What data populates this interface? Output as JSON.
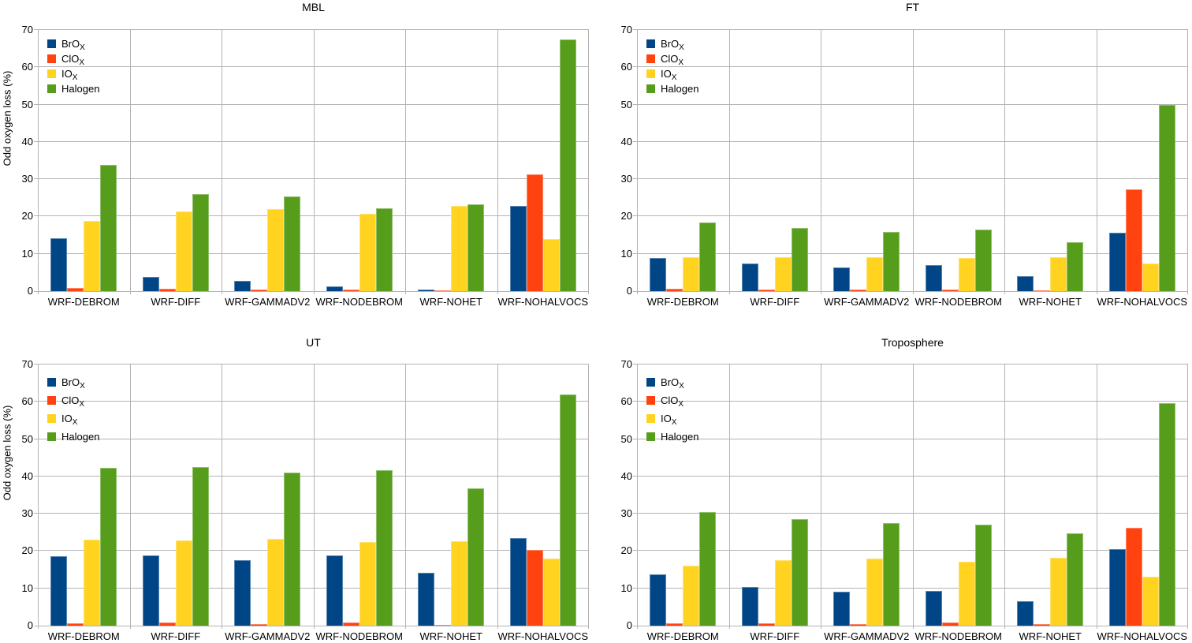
{
  "figure": {
    "background": "#ffffff",
    "grid_color": "#b3b3b3",
    "text_color": "#000000",
    "series_colors": {
      "BrOx": "#004586",
      "ClOx": "#FF420E",
      "IOx": "#FFD320",
      "Halogen": "#579D1C"
    },
    "legend": [
      {
        "series": "BrOx",
        "base": "BrO",
        "sub": "X"
      },
      {
        "series": "ClOx",
        "base": "ClO",
        "sub": "X"
      },
      {
        "series": "IOx",
        "base": "IO",
        "sub": "X"
      },
      {
        "series": "Halogen",
        "base": "Halogen",
        "sub": ""
      }
    ]
  },
  "chart_data": [
    {
      "type": "bar",
      "title": "MBL",
      "ylabel": "Odd oxygen loss (%)",
      "ylim": [
        0,
        70
      ],
      "yticks": [
        0,
        10,
        20,
        30,
        40,
        50,
        60,
        70
      ],
      "grid": true,
      "legend_position": "top-left-inside",
      "categories": [
        "WRF-DEBROM",
        "WRF-DIFF",
        "WRF-GAMMADV2",
        "WRF-NODEBROM",
        "WRF-NOHET",
        "WRF-NOHALVOCS"
      ],
      "series": [
        {
          "name": "BrOx",
          "values": [
            14.2,
            3.8,
            2.8,
            1.3,
            0.4,
            22.8
          ]
        },
        {
          "name": "ClOx",
          "values": [
            0.9,
            0.6,
            0.5,
            0.4,
            0.2,
            31.2
          ]
        },
        {
          "name": "IOx",
          "values": [
            18.9,
            21.4,
            22.0,
            20.8,
            22.9,
            13.9
          ]
        },
        {
          "name": "Halogen",
          "values": [
            33.8,
            26.0,
            25.3,
            22.3,
            23.3,
            67.5
          ]
        }
      ]
    },
    {
      "type": "bar",
      "title": "FT",
      "ylabel": "",
      "ylim": [
        0,
        70
      ],
      "yticks": [
        0,
        10,
        20,
        30,
        40,
        50,
        60,
        70
      ],
      "grid": true,
      "legend_position": "top-left-inside",
      "categories": [
        "WRF-DEBROM",
        "WRF-DIFF",
        "WRF-GAMMADV2",
        "WRF-NODEBROM",
        "WRF-NOHET",
        "WRF-NOHALVOCS"
      ],
      "series": [
        {
          "name": "BrOx",
          "values": [
            8.8,
            7.4,
            6.4,
            7.0,
            4.1,
            15.7
          ]
        },
        {
          "name": "ClOx",
          "values": [
            0.6,
            0.5,
            0.4,
            0.5,
            0.3,
            27.2
          ]
        },
        {
          "name": "IOx",
          "values": [
            9.1,
            9.1,
            9.2,
            8.8,
            9.0,
            7.5
          ]
        },
        {
          "name": "Halogen",
          "values": [
            18.4,
            17.0,
            15.9,
            16.4,
            13.2,
            50.0
          ]
        }
      ]
    },
    {
      "type": "bar",
      "title": "UT",
      "ylabel": "Odd oxygen loss (%)",
      "ylim": [
        0,
        70
      ],
      "yticks": [
        0,
        10,
        20,
        30,
        40,
        50,
        60,
        70
      ],
      "grid": true,
      "legend_position": "top-left-inside",
      "categories": [
        "WRF-DEBROM",
        "WRF-DIFF",
        "WRF-GAMMADV2",
        "WRF-NODEBROM",
        "WRF-NOHET",
        "WRF-NOHALVOCS"
      ],
      "series": [
        {
          "name": "BrOx",
          "values": [
            18.7,
            18.8,
            17.5,
            18.8,
            14.1,
            23.5
          ]
        },
        {
          "name": "ClOx",
          "values": [
            0.7,
            0.9,
            0.5,
            0.9,
            0.3,
            20.4
          ]
        },
        {
          "name": "IOx",
          "values": [
            23.0,
            22.9,
            23.2,
            22.4,
            22.7,
            18.0
          ]
        },
        {
          "name": "Halogen",
          "values": [
            42.2,
            42.5,
            41.0,
            41.6,
            36.9,
            62.0
          ]
        }
      ]
    },
    {
      "type": "bar",
      "title": "Troposphere",
      "ylabel": "",
      "ylim": [
        0,
        70
      ],
      "yticks": [
        0,
        10,
        20,
        30,
        40,
        50,
        60,
        70
      ],
      "grid": true,
      "legend_position": "top-left-inside",
      "categories": [
        "WRF-DEBROM",
        "WRF-DIFF",
        "WRF-GAMMADV2",
        "WRF-NODEBROM",
        "WRF-NOHET",
        "WRF-NOHALVOCS"
      ],
      "series": [
        {
          "name": "BrOx",
          "values": [
            13.8,
            10.4,
            9.1,
            9.4,
            6.6,
            20.6
          ]
        },
        {
          "name": "ClOx",
          "values": [
            0.7,
            0.7,
            0.4,
            0.8,
            0.4,
            26.2
          ]
        },
        {
          "name": "IOx",
          "values": [
            16.0,
            17.6,
            17.9,
            17.1,
            18.1,
            13.1
          ]
        },
        {
          "name": "Halogen",
          "values": [
            30.5,
            28.6,
            27.4,
            27.0,
            24.7,
            59.7
          ]
        }
      ]
    }
  ]
}
